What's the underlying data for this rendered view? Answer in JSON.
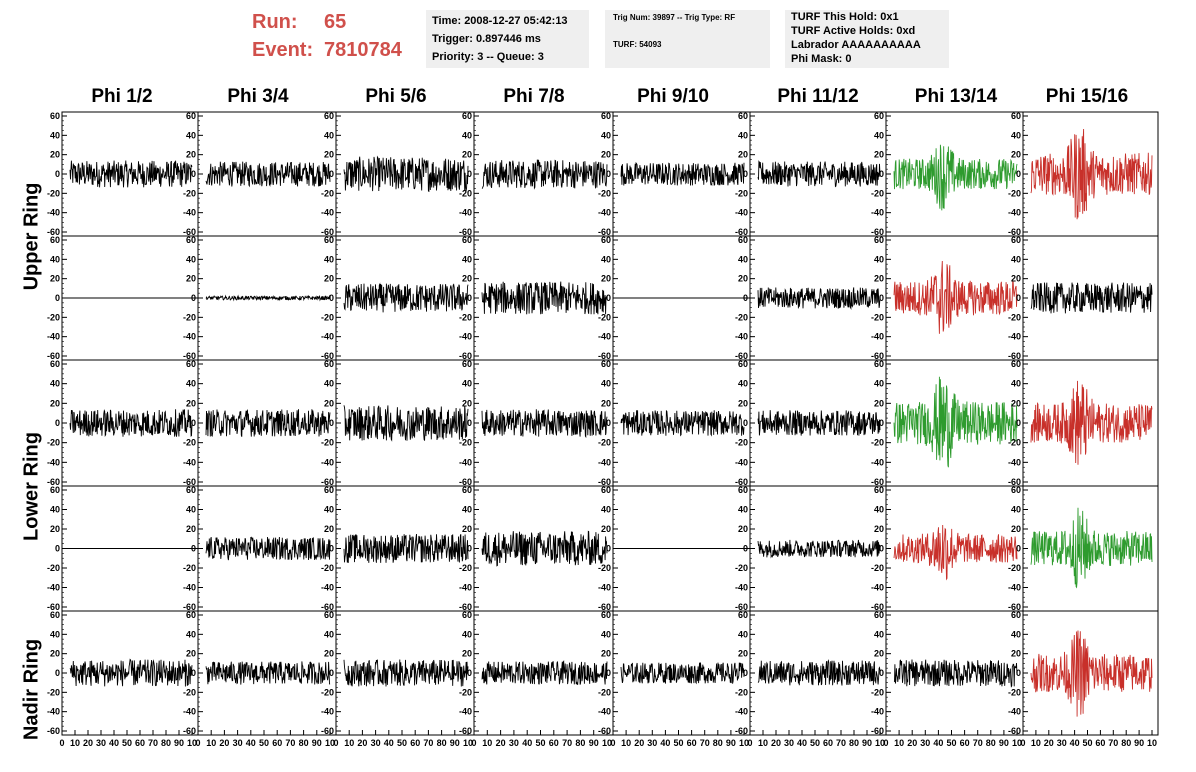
{
  "header": {
    "run_label": "Run:",
    "run_value": "65",
    "event_label": "Event:",
    "event_value": "7810784",
    "time": "Time: 2008-12-27 05:42:13",
    "trigger": "Trigger: 0.897446 ms",
    "priority": "Priority: 3 -- Queue: 3",
    "trig_num": "Trig Num: 39897 -- Trig Type: RF",
    "turf": "TURF: 54093",
    "turf_this_hold": "TURF This Hold: 0x1",
    "turf_active_holds": "TURF Active Holds: 0xd",
    "labrador": "Labrador AAAAAAAAAA",
    "phi_mask": "Phi Mask: 0"
  },
  "colors": {
    "run_text": "#d0504b",
    "black": "#000000",
    "green": "#2e9b2e",
    "red": "#c8302a"
  },
  "columns": [
    "Phi 1/2",
    "Phi 3/4",
    "Phi 5/6",
    "Phi 7/8",
    "Phi 9/10",
    "Phi 11/12",
    "Phi 13/14",
    "Phi 15/16"
  ],
  "ring_labels": [
    "Upper Ring",
    "Lower Ring",
    "Nadir Ring"
  ],
  "chart_data": {
    "type": "line",
    "ylim": [
      -60,
      60
    ],
    "xlim": [
      0,
      100
    ],
    "yticks": [
      -60,
      -40,
      -20,
      0,
      20,
      40,
      60
    ],
    "xticks": [
      0,
      10,
      20,
      30,
      40,
      50,
      60,
      70,
      80,
      90,
      100
    ],
    "x_tick_labels_row": "0 10 20 30 40 50 60 70 80 9010",
    "panel_colors": [
      [
        "black",
        "black",
        "black",
        "black",
        "black",
        "black",
        "green",
        "red"
      ],
      [
        "black",
        "black",
        "black",
        "black",
        "black",
        "black",
        "red",
        "black"
      ],
      [
        "black",
        "black",
        "black",
        "black",
        "black",
        "black",
        "green",
        "red"
      ],
      [
        "black",
        "black",
        "black",
        "black",
        "black",
        "black",
        "red",
        "green"
      ],
      [
        "black",
        "black",
        "black",
        "black",
        "black",
        "black",
        "black",
        "red"
      ]
    ],
    "panel_amplitudes": [
      [
        14,
        13,
        18,
        15,
        12,
        13,
        16,
        22
      ],
      [
        0,
        2,
        15,
        17,
        0,
        11,
        18,
        16
      ],
      [
        14,
        14,
        18,
        14,
        13,
        13,
        22,
        20
      ],
      [
        0,
        12,
        15,
        18,
        0,
        9,
        15,
        18
      ],
      [
        14,
        12,
        14,
        12,
        11,
        13,
        14,
        20
      ]
    ],
    "panel_bursts": [
      [
        0,
        0,
        0,
        0,
        0,
        0,
        1,
        1
      ],
      [
        0,
        0,
        0,
        0,
        0,
        0,
        1,
        0
      ],
      [
        0,
        0,
        0,
        0,
        0,
        0,
        1,
        1
      ],
      [
        0,
        0,
        0,
        0,
        0,
        0,
        1,
        1
      ],
      [
        0,
        0,
        0,
        0,
        0,
        0,
        0,
        1
      ]
    ]
  }
}
